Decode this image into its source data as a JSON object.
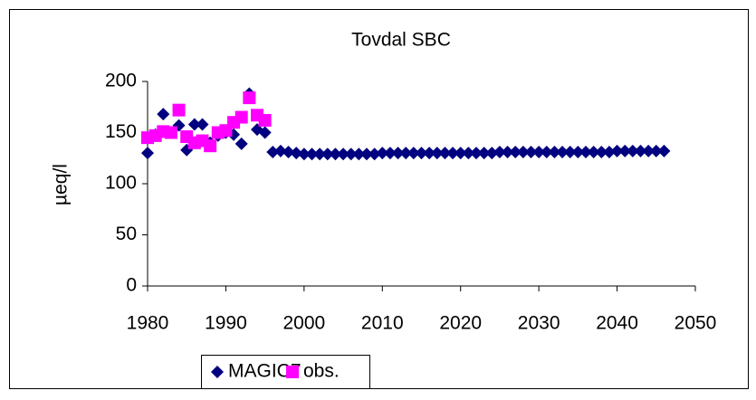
{
  "chart_data": {
    "type": "scatter",
    "title": "Tovdal SBC",
    "y_label": "µeq/l",
    "xlim": [
      1980,
      2050
    ],
    "xticks": [
      1980,
      1990,
      2000,
      2010,
      2020,
      2030,
      2040,
      2050
    ],
    "ylim": [
      0,
      200
    ],
    "yticks": [
      0,
      50,
      100,
      150,
      200
    ],
    "series": [
      {
        "name": "MAGIC7",
        "color": "#000080",
        "marker": "diamond",
        "x": [
          1980,
          1981,
          1982,
          1983,
          1984,
          1985,
          1986,
          1987,
          1988,
          1989,
          1990,
          1991,
          1992,
          1993,
          1994,
          1995,
          1996,
          1997,
          1998,
          1999,
          2000,
          2001,
          2002,
          2003,
          2004,
          2005,
          2006,
          2007,
          2008,
          2009,
          2010,
          2011,
          2012,
          2013,
          2014,
          2015,
          2016,
          2017,
          2018,
          2019,
          2020,
          2021,
          2022,
          2023,
          2024,
          2025,
          2026,
          2027,
          2028,
          2029,
          2030,
          2031,
          2032,
          2033,
          2034,
          2035,
          2036,
          2037,
          2038,
          2039,
          2040,
          2041,
          2042,
          2043,
          2044,
          2045,
          2046
        ],
        "values": [
          130,
          148,
          168,
          150,
          157,
          133,
          158,
          158,
          140,
          147,
          150,
          148,
          139,
          188,
          153,
          150,
          131,
          132,
          131,
          130,
          129,
          129,
          129,
          129,
          129,
          129,
          129,
          129,
          129,
          129,
          130,
          130,
          130,
          130,
          130,
          130,
          130,
          130,
          130,
          130,
          130,
          130,
          130,
          130,
          130,
          131,
          131,
          131,
          131,
          131,
          131,
          131,
          131,
          131,
          131,
          131,
          131,
          131,
          131,
          131,
          132,
          132,
          132,
          132,
          132,
          132,
          132
        ]
      },
      {
        "name": "obs.",
        "color": "#ff00ff",
        "marker": "square",
        "x": [
          1980,
          1981,
          1982,
          1983,
          1984,
          1985,
          1986,
          1987,
          1988,
          1989,
          1990,
          1991,
          1992,
          1993,
          1994,
          1995
        ],
        "values": [
          145,
          147,
          151,
          150,
          172,
          146,
          140,
          142,
          137,
          150,
          152,
          160,
          165,
          184,
          167,
          162
        ]
      }
    ]
  }
}
